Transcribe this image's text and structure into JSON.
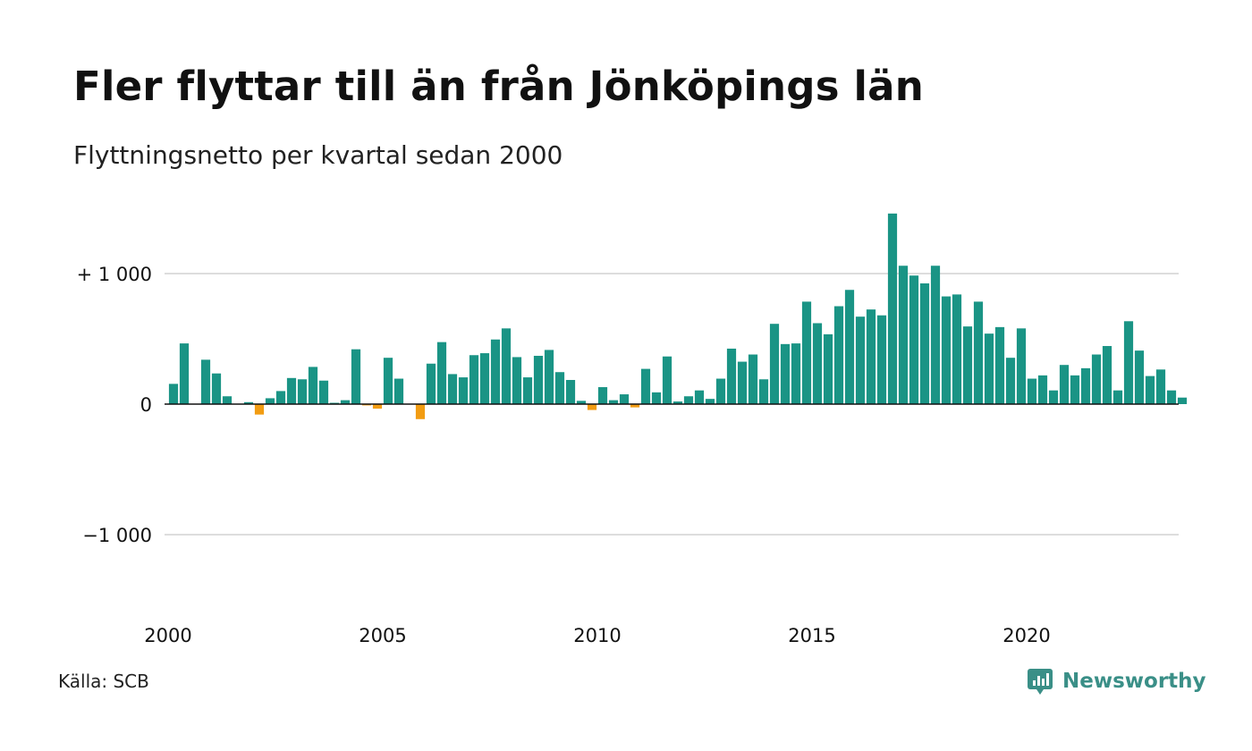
{
  "chart_data": {
    "type": "bar",
    "title": "Fler flyttar till än från Jönköpings län",
    "subtitle": "Flyttningsnetto per kvartal sedan 2000",
    "x_start": "2000 Q1",
    "x_tick_labels": [
      "2000",
      "2005",
      "2010",
      "2015",
      "2020"
    ],
    "y_tick_labels": [
      "+ 1 000",
      "0",
      "−1 000"
    ],
    "y_ticks": [
      1000,
      0,
      -1000
    ],
    "ylim": [
      -1550,
      1550
    ],
    "grid": true,
    "legend": "none",
    "colors": {
      "positive": "#1a9485",
      "negative": "#f29c12",
      "grid": "#dddddd",
      "baseline": "#111111"
    },
    "values": [
      155,
      465,
      0,
      340,
      235,
      60,
      0,
      15,
      -80,
      45,
      100,
      200,
      190,
      285,
      180,
      10,
      30,
      420,
      -10,
      -35,
      355,
      195,
      0,
      -115,
      310,
      475,
      230,
      205,
      375,
      390,
      495,
      580,
      360,
      205,
      370,
      415,
      245,
      185,
      25,
      -45,
      130,
      30,
      75,
      -25,
      270,
      90,
      365,
      20,
      60,
      105,
      40,
      195,
      425,
      325,
      380,
      190,
      615,
      460,
      465,
      785,
      620,
      535,
      750,
      875,
      670,
      725,
      680,
      1460,
      1060,
      985,
      925,
      1060,
      825,
      840,
      595,
      785,
      540,
      590,
      355,
      580,
      195,
      220,
      105,
      300,
      220,
      275,
      380,
      445,
      105,
      635,
      410,
      215,
      265,
      105,
      50
    ]
  },
  "footer": {
    "source": "Källa: SCB",
    "brand": "Newsworthy"
  }
}
